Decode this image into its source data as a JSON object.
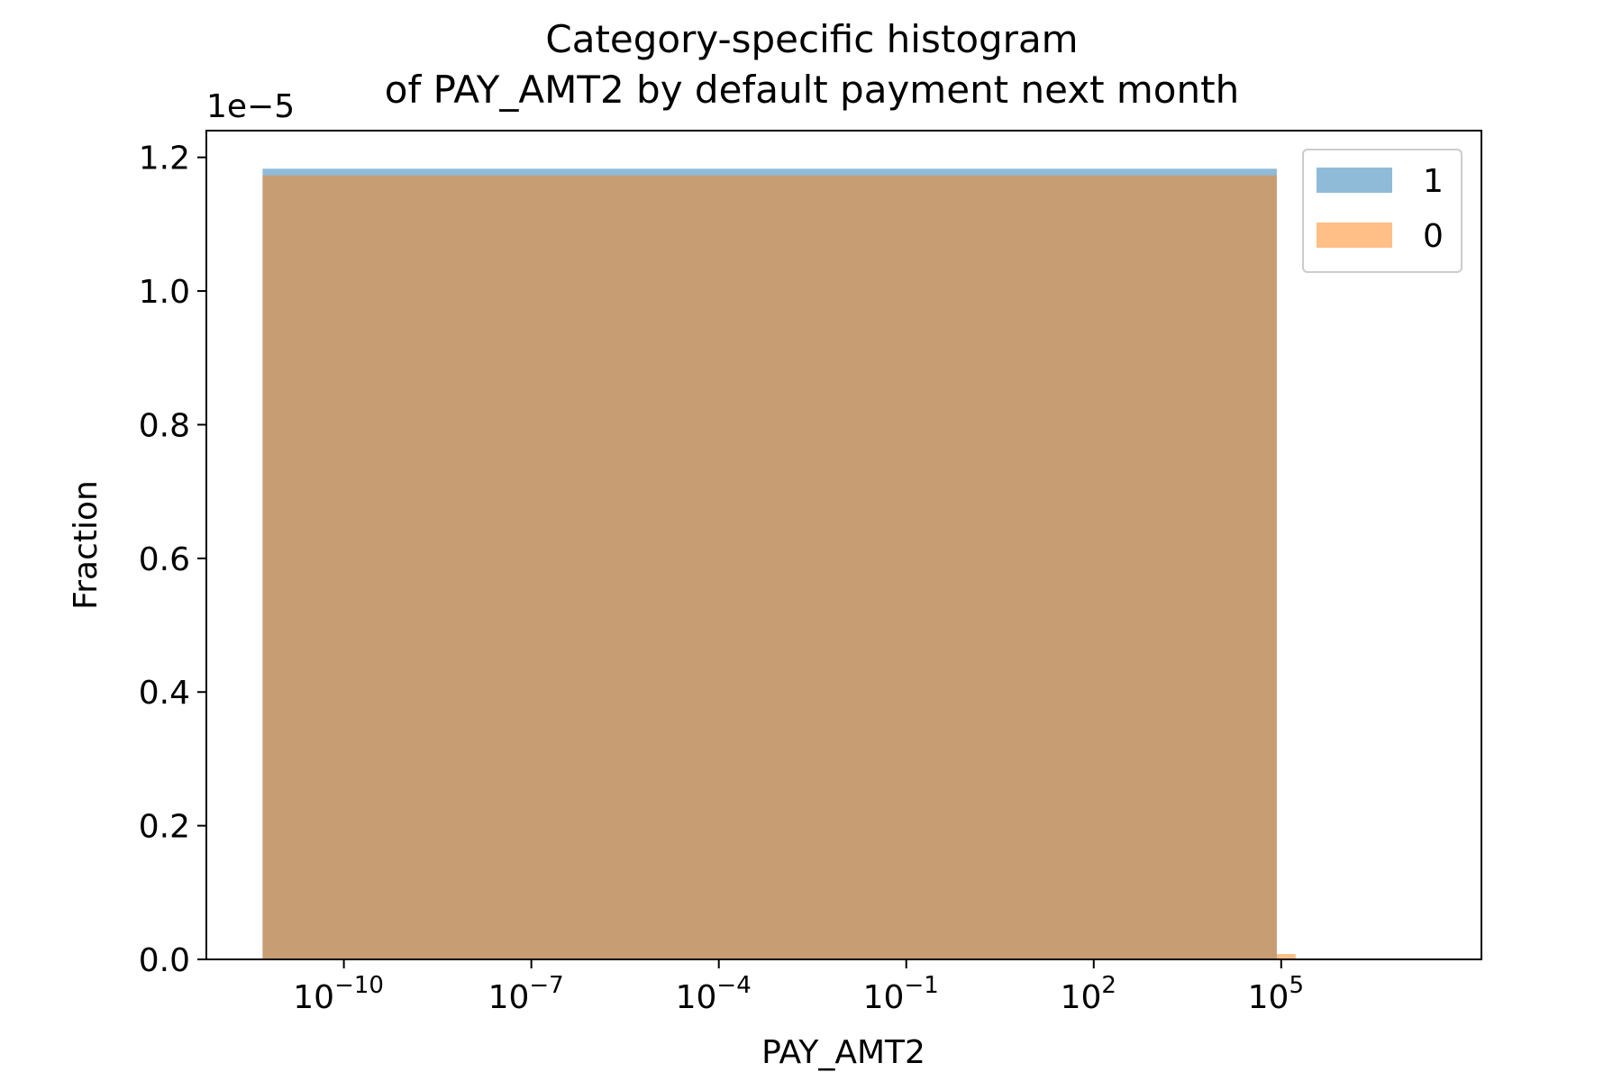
{
  "chart_data": {
    "type": "bar",
    "title": "Category-specific histogram\nof PAY_AMT2 by default payment next month",
    "title_lines": [
      "Category-specific histogram",
      "of PAY_AMT2 by default payment next month"
    ],
    "xlabel": "PAY_AMT2",
    "ylabel": "Fraction",
    "y_offset_label": "1e−5",
    "xscale": "log",
    "xlim": [
      6.3e-13,
      160000000.0
    ],
    "ylim": [
      0,
      1.24e-05
    ],
    "x_ticks": [
      {
        "value": 1e-10,
        "base": "10",
        "exp": "−10"
      },
      {
        "value": 1e-07,
        "base": "10",
        "exp": "−7"
      },
      {
        "value": 0.0001,
        "base": "10",
        "exp": "−4"
      },
      {
        "value": 0.1,
        "base": "10",
        "exp": "−1"
      },
      {
        "value": 100.0,
        "base": "10",
        "exp": "2"
      },
      {
        "value": 100000.0,
        "base": "10",
        "exp": "5"
      }
    ],
    "y_ticks": [
      {
        "value": 0.0,
        "label": "0.0"
      },
      {
        "value": 2e-06,
        "label": "0.2"
      },
      {
        "value": 4e-06,
        "label": "0.4"
      },
      {
        "value": 6e-06,
        "label": "0.6"
      },
      {
        "value": 8e-06,
        "label": "0.8"
      },
      {
        "value": 1e-05,
        "label": "1.0"
      },
      {
        "value": 1.2e-05,
        "label": "1.2"
      }
    ],
    "grid": false,
    "legend_position": "top-right",
    "series": [
      {
        "name": "1",
        "color": "#1f77b4",
        "opacity": 0.5,
        "bins": [
          {
            "x0": 5e-12,
            "x1": 85000.0,
            "value": 1.183e-05
          }
        ]
      },
      {
        "name": "0",
        "color": "#ff7f0e",
        "opacity": 0.5,
        "bins": [
          {
            "x0": 5e-12,
            "x1": 85000.0,
            "value": 1.173e-05
          },
          {
            "x0": 85000.0,
            "x1": 170000.0,
            "value": 8e-08
          }
        ]
      }
    ]
  }
}
